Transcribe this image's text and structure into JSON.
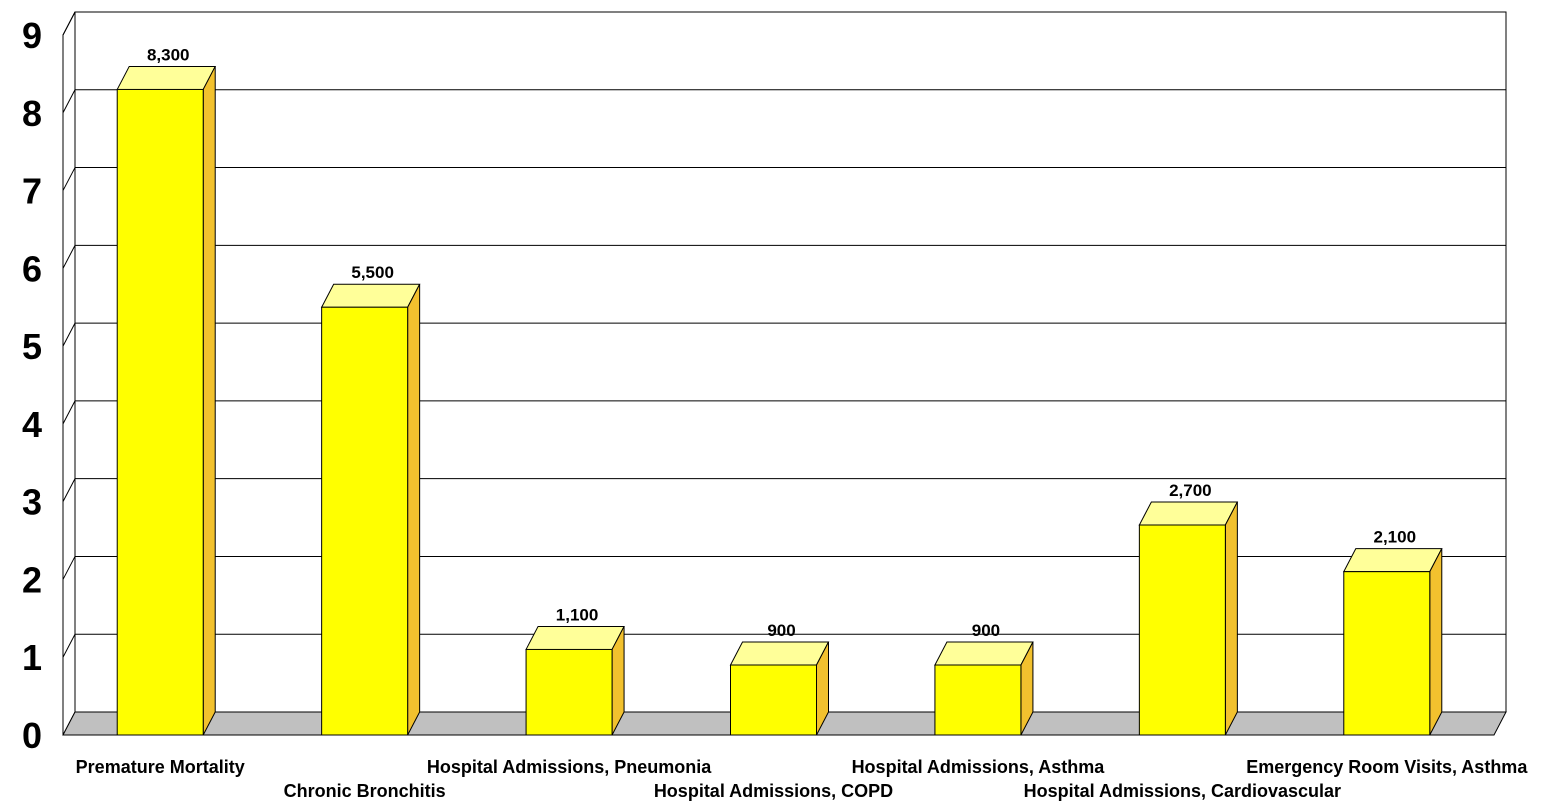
{
  "chart_data": {
    "type": "bar",
    "categories": [
      "Premature Mortality",
      "Chronic Bronchitis",
      "Hospital Admissions, Pneumonia",
      "Hospital Admissions, COPD",
      "Hospital Admissions, Asthma",
      "Hospital Admissions, Cardiovascular",
      "Emergency Room Visits, Asthma"
    ],
    "values": [
      8300,
      5500,
      1100,
      900,
      900,
      2700,
      2100
    ],
    "data_labels": [
      "8,300",
      "5,500",
      "1,100",
      "900",
      "900",
      "2,700",
      "2,100"
    ],
    "y_ticks": [
      "0",
      "1",
      "2",
      "3",
      "4",
      "5",
      "6",
      "7",
      "8",
      "9"
    ],
    "ylim": [
      0,
      9
    ],
    "grid": true,
    "style": "3d-column",
    "colors": {
      "bar_front": "#ffff00",
      "bar_side": "#f2c12e",
      "bar_top": "#ffff99",
      "floor": "#c0c0c0",
      "gridline": "#000000"
    }
  }
}
